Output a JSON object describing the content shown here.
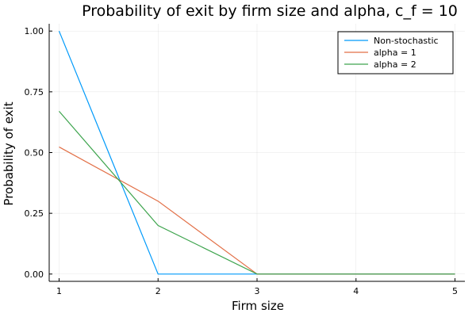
{
  "chart_data": {
    "type": "line",
    "title": "Probability of exit by firm size and alpha, c_f = 10",
    "xlabel": "Firm size",
    "ylabel": "Probability of exit",
    "x": [
      1,
      2,
      3,
      4,
      5
    ],
    "xticks": [
      "1",
      "2",
      "3",
      "4",
      "5"
    ],
    "yticks": [
      "0.00",
      "0.25",
      "0.50",
      "0.75",
      "1.00"
    ],
    "xlim": [
      0.9,
      5.1
    ],
    "ylim": [
      -0.03,
      1.03
    ],
    "grid": true,
    "legend_position": "top-right",
    "series": [
      {
        "name": "Non-stochastic",
        "color": "#009AFA",
        "values": [
          1.0,
          0.0,
          0.0,
          0.0,
          0.0
        ]
      },
      {
        "name": "alpha = 1",
        "color": "#E26F46",
        "values": [
          0.523,
          0.3,
          0.0,
          0.0,
          0.0
        ]
      },
      {
        "name": "alpha = 2",
        "color": "#3DA44D",
        "values": [
          0.67,
          0.2,
          0.0,
          0.0,
          0.0
        ]
      }
    ]
  }
}
